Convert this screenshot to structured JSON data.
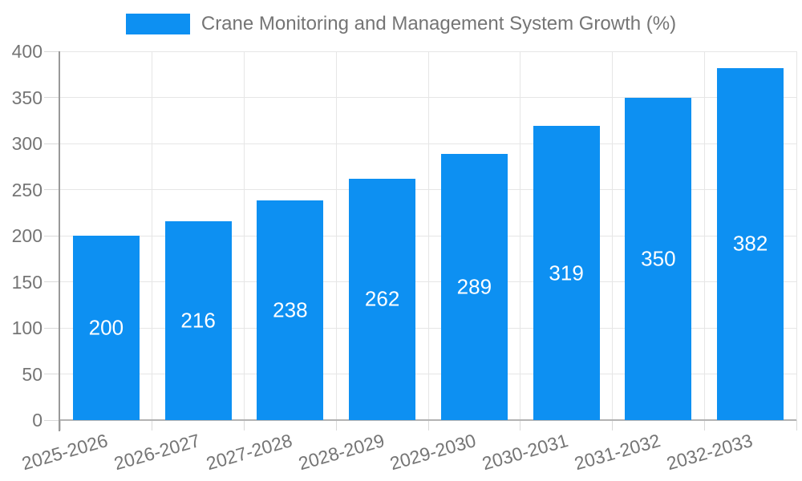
{
  "legend": {
    "label": "Crane Monitoring and Management System Growth (%)",
    "swatch_color": "#0d90f2"
  },
  "chart_data": {
    "type": "bar",
    "title": "Crane Monitoring and Management System Growth (%)",
    "categories": [
      "2025-2026",
      "2026-2027",
      "2027-2028",
      "2028-2029",
      "2029-2030",
      "2030-2031",
      "2031-2032",
      "2032-2033"
    ],
    "values": [
      200,
      216,
      238,
      262,
      289,
      319,
      350,
      382
    ],
    "xlabel": "",
    "ylabel": "",
    "ylim": [
      0,
      400
    ],
    "yticks": [
      0,
      50,
      100,
      150,
      200,
      250,
      300,
      350,
      400
    ],
    "grid": true,
    "legend_position": "top-center",
    "bar_color": "#0d90f2",
    "value_label_color": "#ffffff",
    "axis_text_color": "#757575",
    "grid_color": "#e6e6e6",
    "tick_color": "#d9d9d9",
    "axis_line_color": "#999999",
    "baseline_color": "#b3b3b3",
    "x_label_rotation_deg": -16
  }
}
